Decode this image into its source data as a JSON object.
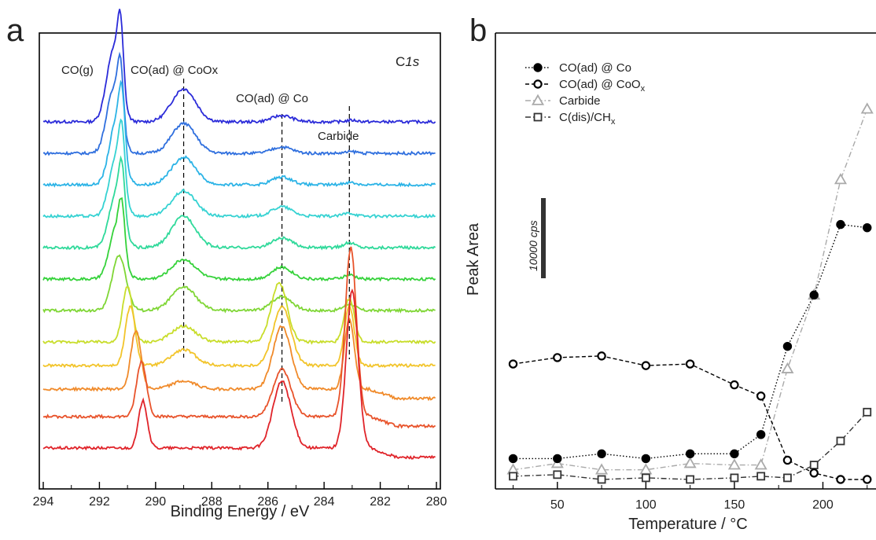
{
  "chart_data": [
    {
      "type": "line",
      "panel_label": "a",
      "xlabel": "Binding Energy / eV",
      "ylabel": "",
      "xlim": [
        294,
        280
      ],
      "x_reversed": true,
      "xticks": [
        294,
        292,
        290,
        288,
        286,
        284,
        282,
        280
      ],
      "yticks_shown": false,
      "corner_label_main": "C",
      "corner_label_italic": "1s",
      "annotations": [
        "CO(g)",
        "CO(ad) @ CoOx",
        "CO(ad) @ Co",
        "Carbide"
      ],
      "reference_lines_eV": [
        289.0,
        285.5,
        283.1
      ],
      "colors": [
        "#2b2bd9",
        "#2f6fde",
        "#2bb3e6",
        "#35d2d2",
        "#2fd99a",
        "#35d23a",
        "#7fd635",
        "#c8dd2a",
        "#f2c42a",
        "#f08a2a",
        "#e8532b",
        "#e0242a"
      ],
      "series": [
        {
          "color": "#2b2bd9",
          "baseline": 0.0,
          "peaks": [
            [
              291.5,
              0.9,
              0.35
            ],
            [
              291.25,
              0.85,
              0.15
            ],
            [
              289.0,
              0.42,
              0.6
            ],
            [
              285.5,
              0.08,
              0.5
            ],
            [
              283.0,
              0.02,
              0.3
            ]
          ]
        },
        {
          "color": "#2f6fde",
          "baseline": -0.4,
          "peaks": [
            [
              291.5,
              0.8,
              0.35
            ],
            [
              291.25,
              0.75,
              0.15
            ],
            [
              289.0,
              0.38,
              0.6
            ],
            [
              285.5,
              0.08,
              0.5
            ],
            [
              283.0,
              0.02,
              0.3
            ]
          ]
        },
        {
          "color": "#2bb3e6",
          "baseline": -0.8,
          "peaks": [
            [
              291.4,
              0.8,
              0.35
            ],
            [
              291.2,
              0.7,
              0.15
            ],
            [
              289.0,
              0.35,
              0.6
            ],
            [
              285.5,
              0.1,
              0.5
            ],
            [
              283.1,
              0.03,
              0.3
            ]
          ]
        },
        {
          "color": "#35d2d2",
          "baseline": -1.2,
          "peaks": [
            [
              291.4,
              0.75,
              0.35
            ],
            [
              291.2,
              0.65,
              0.15
            ],
            [
              289.0,
              0.32,
              0.6
            ],
            [
              285.5,
              0.12,
              0.5
            ],
            [
              283.1,
              0.04,
              0.3
            ]
          ]
        },
        {
          "color": "#2fd99a",
          "baseline": -1.6,
          "peaks": [
            [
              291.4,
              0.7,
              0.35
            ],
            [
              291.2,
              0.6,
              0.15
            ],
            [
              289.0,
              0.4,
              0.6
            ],
            [
              285.5,
              0.12,
              0.5
            ],
            [
              283.1,
              0.06,
              0.3
            ]
          ]
        },
        {
          "color": "#35d23a",
          "baseline": -2.0,
          "peaks": [
            [
              291.4,
              0.65,
              0.35
            ],
            [
              291.2,
              0.55,
              0.15
            ],
            [
              289.0,
              0.25,
              0.6
            ],
            [
              285.5,
              0.15,
              0.5
            ],
            [
              283.1,
              0.05,
              0.3
            ]
          ]
        },
        {
          "color": "#7fd635",
          "baseline": -2.4,
          "peaks": [
            [
              291.3,
              0.7,
              0.35
            ],
            [
              289.0,
              0.3,
              0.6
            ],
            [
              285.5,
              0.18,
              0.5
            ],
            [
              283.1,
              0.08,
              0.3
            ]
          ]
        },
        {
          "color": "#c8dd2a",
          "baseline": -2.8,
          "peaks": [
            [
              291.0,
              0.7,
              0.25
            ],
            [
              289.0,
              0.2,
              0.6
            ],
            [
              285.6,
              0.75,
              0.4
            ],
            [
              283.1,
              0.55,
              0.25
            ]
          ]
        },
        {
          "color": "#f2c42a",
          "baseline": -3.1,
          "peaks": [
            [
              290.9,
              0.75,
              0.25
            ],
            [
              289.0,
              0.2,
              0.6
            ],
            [
              285.5,
              0.75,
              0.45
            ],
            [
              283.1,
              0.75,
              0.25
            ]
          ]
        },
        {
          "color": "#f08a2a",
          "baseline": -3.4,
          "peaks": [
            [
              290.7,
              0.75,
              0.25
            ],
            [
              289.0,
              0.1,
              0.6
            ],
            [
              285.5,
              0.8,
              0.45
            ],
            [
              283.1,
              0.9,
              0.25
            ]
          ]
        },
        {
          "color": "#e8532b",
          "baseline": -3.75,
          "peaks": [
            [
              290.5,
              0.7,
              0.25
            ],
            [
              285.5,
              0.6,
              0.45
            ],
            [
              283.05,
              2.15,
              0.28
            ]
          ]
        },
        {
          "color": "#e0242a",
          "baseline": -4.15,
          "peaks": [
            [
              290.45,
              0.6,
              0.22
            ],
            [
              285.5,
              0.85,
              0.45
            ],
            [
              283.0,
              2.0,
              0.3
            ]
          ]
        }
      ]
    },
    {
      "type": "line",
      "panel_label": "b",
      "xlabel": "Temperature / °C",
      "ylabel": "Peak Area",
      "xlim": [
        15,
        230
      ],
      "ylim": [
        0,
        100
      ],
      "xticks": [
        50,
        100,
        150,
        200
      ],
      "scale_bar_label": "10000 cps",
      "scale_bar_value": 25,
      "legend_position": "top-left",
      "series": [
        {
          "name": "CO(ad) @ Co",
          "name_sub": "",
          "marker": "filled-circle",
          "line": "dotted",
          "color": "#000000",
          "x": [
            25,
            50,
            75,
            100,
            125,
            150,
            165,
            180,
            195,
            210,
            225
          ],
          "y": [
            7,
            7,
            8.5,
            7,
            8.5,
            8.5,
            14.5,
            42,
            58,
            80,
            79
          ]
        },
        {
          "name": "CO(ad) @ CoO",
          "name_sub": "x",
          "marker": "open-circle",
          "line": "dashed",
          "color": "#000000",
          "x": [
            25,
            50,
            75,
            100,
            125,
            150,
            165,
            180,
            195,
            210,
            225
          ],
          "y": [
            36.5,
            38.5,
            39,
            36,
            36.5,
            30,
            26.5,
            6.5,
            2.5,
            0.5,
            0.5
          ]
        },
        {
          "name": "Carbide",
          "name_sub": "",
          "marker": "open-triangle",
          "line": "dash-dot",
          "color": "#aaaaaa",
          "x": [
            25,
            50,
            75,
            100,
            125,
            150,
            165,
            180,
            195,
            210,
            225
          ],
          "y": [
            3.5,
            5.5,
            3.5,
            3.5,
            5.5,
            5,
            5,
            35,
            58,
            94,
            116
          ]
        },
        {
          "name": "C(dis)/CH",
          "name_sub": "x",
          "marker": "open-square",
          "line": "dash-dot",
          "color": "#333333",
          "x": [
            25,
            50,
            75,
            100,
            125,
            150,
            165,
            180,
            195,
            210,
            225
          ],
          "y": [
            1.5,
            2,
            0.5,
            1,
            0.5,
            1,
            1.5,
            1,
            5,
            12.5,
            21.5
          ]
        }
      ]
    }
  ]
}
